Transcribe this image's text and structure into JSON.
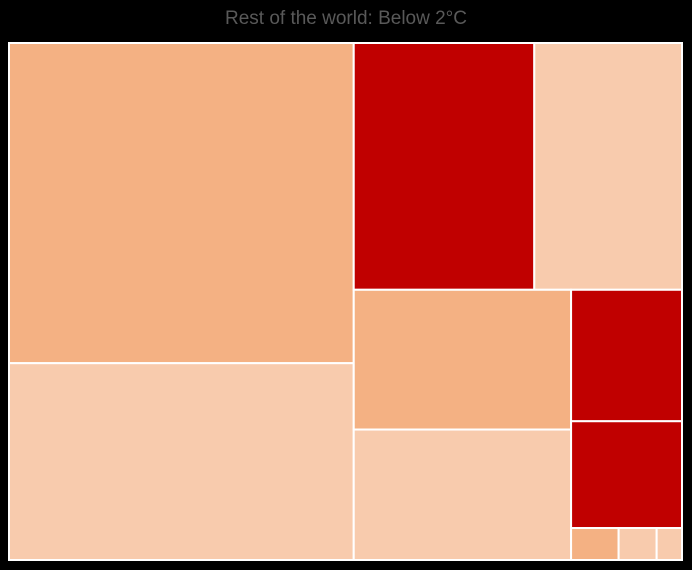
{
  "chart_data": {
    "type": "treemap",
    "title": "Rest of the world: Below 2°C",
    "colors": {
      "medium": "#f4b183",
      "light": "#f8cbad",
      "dark": "#c00000",
      "border": "#ffffff",
      "title": "#595959",
      "background": "#000000"
    },
    "items": [
      {
        "value": 109.0,
        "shade": "medium"
      },
      {
        "value": 67.0,
        "shade": "light"
      },
      {
        "value": 44.0,
        "shade": "dark"
      },
      {
        "value": 36.0,
        "shade": "light"
      },
      {
        "value": 30.0,
        "shade": "medium"
      },
      {
        "value": 28.0,
        "shade": "light"
      },
      {
        "value": 14.4,
        "shade": "dark"
      },
      {
        "value": 11.7,
        "shade": "dark"
      },
      {
        "value": 1.5,
        "shade": "medium"
      },
      {
        "value": 1.2,
        "shade": "light"
      },
      {
        "value": 0.8,
        "shade": "light"
      }
    ]
  }
}
